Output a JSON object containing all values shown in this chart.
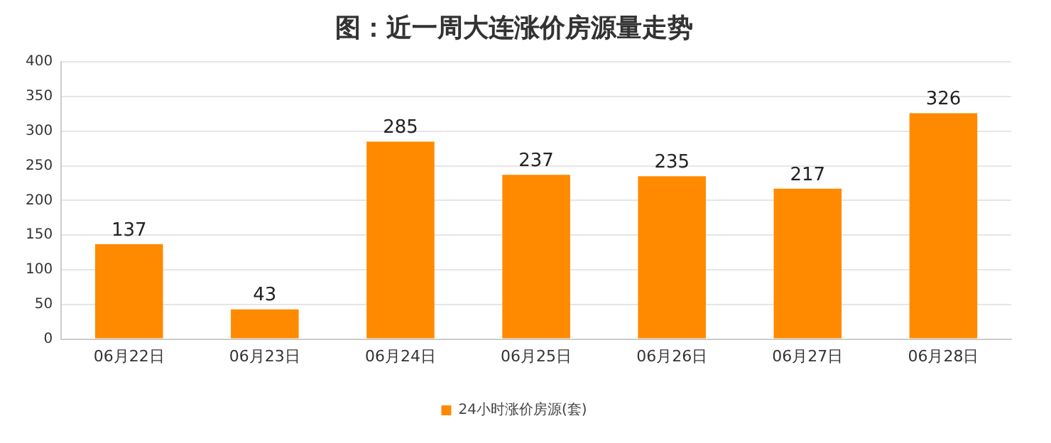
{
  "chart_data": {
    "type": "bar",
    "title": "图：近一周大连涨价房源量走势",
    "categories": [
      "06月22日",
      "06月23日",
      "06月24日",
      "06月25日",
      "06月26日",
      "06月27日",
      "06月28日"
    ],
    "series": [
      {
        "name": "24小时涨价房源(套)",
        "color": "#ff8a00",
        "values": [
          137,
          43,
          285,
          237,
          235,
          217,
          326
        ]
      }
    ],
    "ylim": [
      0,
      400
    ],
    "yticks": [
      0,
      50,
      100,
      150,
      200,
      250,
      300,
      350,
      400
    ],
    "grid": "y",
    "legend": "bottom",
    "data_labels": true
  }
}
